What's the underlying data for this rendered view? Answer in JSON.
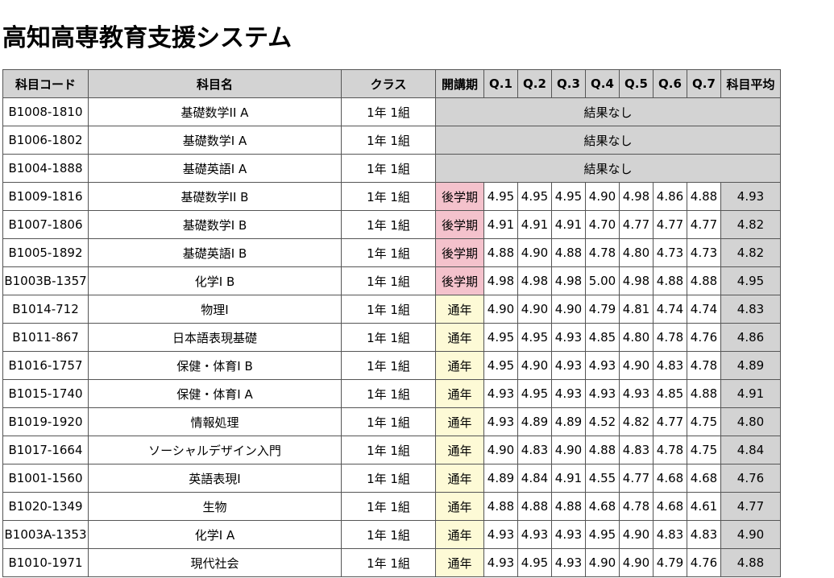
{
  "page_title": "高知高専教育支援システム",
  "no_result_label": "結果なし",
  "colors": {
    "header_bg": "#d3d3d3",
    "kouki_bg": "#f4c2cc",
    "tsunen_bg": "#fdfad6",
    "avg_bg": "#d3d3d3"
  },
  "headers": {
    "code": "科目コード",
    "name": "科目名",
    "class": "クラス",
    "period": "開講期",
    "q1": "Q.1",
    "q2": "Q.2",
    "q3": "Q.3",
    "q4": "Q.4",
    "q5": "Q.5",
    "q6": "Q.6",
    "q7": "Q.7",
    "avg": "科目平均"
  },
  "rows": [
    {
      "code": "B1008-1810",
      "name": "基礎数学II A",
      "class": "1年 1組",
      "has_result": false
    },
    {
      "code": "B1006-1802",
      "name": "基礎数学I A",
      "class": "1年 1組",
      "has_result": false
    },
    {
      "code": "B1004-1888",
      "name": "基礎英語I A",
      "class": "1年 1組",
      "has_result": false
    },
    {
      "code": "B1009-1816",
      "name": "基礎数学II B",
      "class": "1年 1組",
      "has_result": true,
      "period": "後学期",
      "period_type": "kouki",
      "q": [
        "4.95",
        "4.95",
        "4.95",
        "4.90",
        "4.98",
        "4.86",
        "4.88"
      ],
      "avg": "4.93"
    },
    {
      "code": "B1007-1806",
      "name": "基礎数学I B",
      "class": "1年 1組",
      "has_result": true,
      "period": "後学期",
      "period_type": "kouki",
      "q": [
        "4.91",
        "4.91",
        "4.91",
        "4.70",
        "4.77",
        "4.77",
        "4.77"
      ],
      "avg": "4.82"
    },
    {
      "code": "B1005-1892",
      "name": "基礎英語I B",
      "class": "1年 1組",
      "has_result": true,
      "period": "後学期",
      "period_type": "kouki",
      "q": [
        "4.88",
        "4.90",
        "4.88",
        "4.78",
        "4.80",
        "4.73",
        "4.73"
      ],
      "avg": "4.82"
    },
    {
      "code": "B1003B-1357",
      "name": "化学I B",
      "class": "1年 1組",
      "has_result": true,
      "period": "後学期",
      "period_type": "kouki",
      "q": [
        "4.98",
        "4.98",
        "4.98",
        "5.00",
        "4.98",
        "4.88",
        "4.88"
      ],
      "avg": "4.95"
    },
    {
      "code": "B1014-712",
      "name": "物理I",
      "class": "1年 1組",
      "has_result": true,
      "period": "通年",
      "period_type": "tsunen",
      "q": [
        "4.90",
        "4.90",
        "4.90",
        "4.79",
        "4.81",
        "4.74",
        "4.74"
      ],
      "avg": "4.83"
    },
    {
      "code": "B1011-867",
      "name": "日本語表現基礎",
      "class": "1年 1組",
      "has_result": true,
      "period": "通年",
      "period_type": "tsunen",
      "q": [
        "4.95",
        "4.95",
        "4.93",
        "4.85",
        "4.80",
        "4.78",
        "4.76"
      ],
      "avg": "4.86"
    },
    {
      "code": "B1016-1757",
      "name": "保健・体育I B",
      "class": "1年 1組",
      "has_result": true,
      "period": "通年",
      "period_type": "tsunen",
      "q": [
        "4.95",
        "4.90",
        "4.93",
        "4.93",
        "4.90",
        "4.83",
        "4.78"
      ],
      "avg": "4.89"
    },
    {
      "code": "B1015-1740",
      "name": "保健・体育I A",
      "class": "1年 1組",
      "has_result": true,
      "period": "通年",
      "period_type": "tsunen",
      "q": [
        "4.93",
        "4.95",
        "4.93",
        "4.93",
        "4.93",
        "4.85",
        "4.88"
      ],
      "avg": "4.91"
    },
    {
      "code": "B1019-1920",
      "name": "情報処理",
      "class": "1年 1組",
      "has_result": true,
      "period": "通年",
      "period_type": "tsunen",
      "q": [
        "4.93",
        "4.89",
        "4.89",
        "4.52",
        "4.82",
        "4.77",
        "4.75"
      ],
      "avg": "4.80"
    },
    {
      "code": "B1017-1664",
      "name": "ソーシャルデザイン入門",
      "class": "1年 1組",
      "has_result": true,
      "period": "通年",
      "period_type": "tsunen",
      "q": [
        "4.90",
        "4.83",
        "4.90",
        "4.88",
        "4.83",
        "4.78",
        "4.75"
      ],
      "avg": "4.84"
    },
    {
      "code": "B1001-1560",
      "name": "英語表現I",
      "class": "1年 1組",
      "has_result": true,
      "period": "通年",
      "period_type": "tsunen",
      "q": [
        "4.89",
        "4.84",
        "4.91",
        "4.55",
        "4.77",
        "4.68",
        "4.68"
      ],
      "avg": "4.76"
    },
    {
      "code": "B1020-1349",
      "name": "生物",
      "class": "1年 1組",
      "has_result": true,
      "period": "通年",
      "period_type": "tsunen",
      "q": [
        "4.88",
        "4.88",
        "4.88",
        "4.68",
        "4.78",
        "4.68",
        "4.61"
      ],
      "avg": "4.77"
    },
    {
      "code": "B1003A-1353",
      "name": "化学I A",
      "class": "1年 1組",
      "has_result": true,
      "period": "通年",
      "period_type": "tsunen",
      "q": [
        "4.93",
        "4.93",
        "4.93",
        "4.95",
        "4.90",
        "4.83",
        "4.83"
      ],
      "avg": "4.90"
    },
    {
      "code": "B1010-1971",
      "name": "現代社会",
      "class": "1年 1組",
      "has_result": true,
      "period": "通年",
      "period_type": "tsunen",
      "q": [
        "4.93",
        "4.95",
        "4.93",
        "4.90",
        "4.90",
        "4.79",
        "4.76"
      ],
      "avg": "4.88"
    }
  ]
}
